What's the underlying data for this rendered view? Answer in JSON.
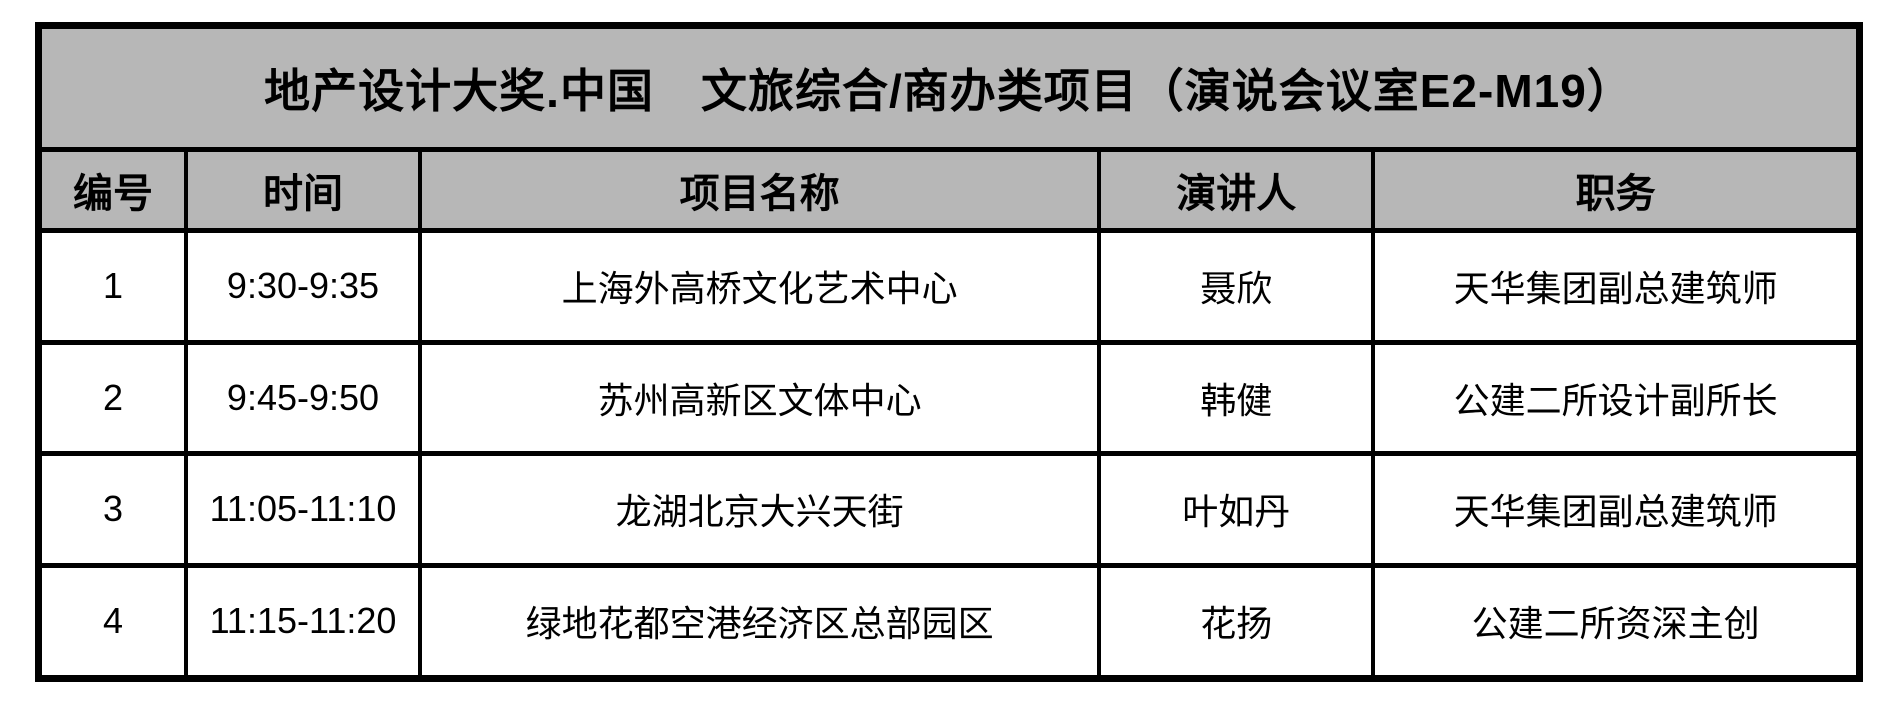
{
  "table": {
    "title": "地产设计大奖.中国　文旅综合/商办类项目（演说会议室E2-M19）",
    "columns": [
      "编号",
      "时间",
      "项目名称",
      "演讲人",
      "职务"
    ],
    "rows": [
      {
        "no": "1",
        "time": "9:30-9:35",
        "project": "上海外高桥文化艺术中心",
        "speaker": "聂欣",
        "position": "天华集团副总建筑师"
      },
      {
        "no": "2",
        "time": "9:45-9:50",
        "project": "苏州高新区文体中心",
        "speaker": "韩健",
        "position": "公建二所设计副所长"
      },
      {
        "no": "3",
        "time": "11:05-11:10",
        "project": "龙湖北京大兴天街",
        "speaker": "叶如丹",
        "position": "天华集团副总建筑师"
      },
      {
        "no": "4",
        "time": "11:15-11:20",
        "project": "绿地花都空港经济区总部园区",
        "speaker": "花扬",
        "position": "公建二所资深主创"
      }
    ],
    "colors": {
      "header_bg": "#b7b7b7",
      "border": "#000000",
      "body_bg": "#ffffff"
    }
  }
}
